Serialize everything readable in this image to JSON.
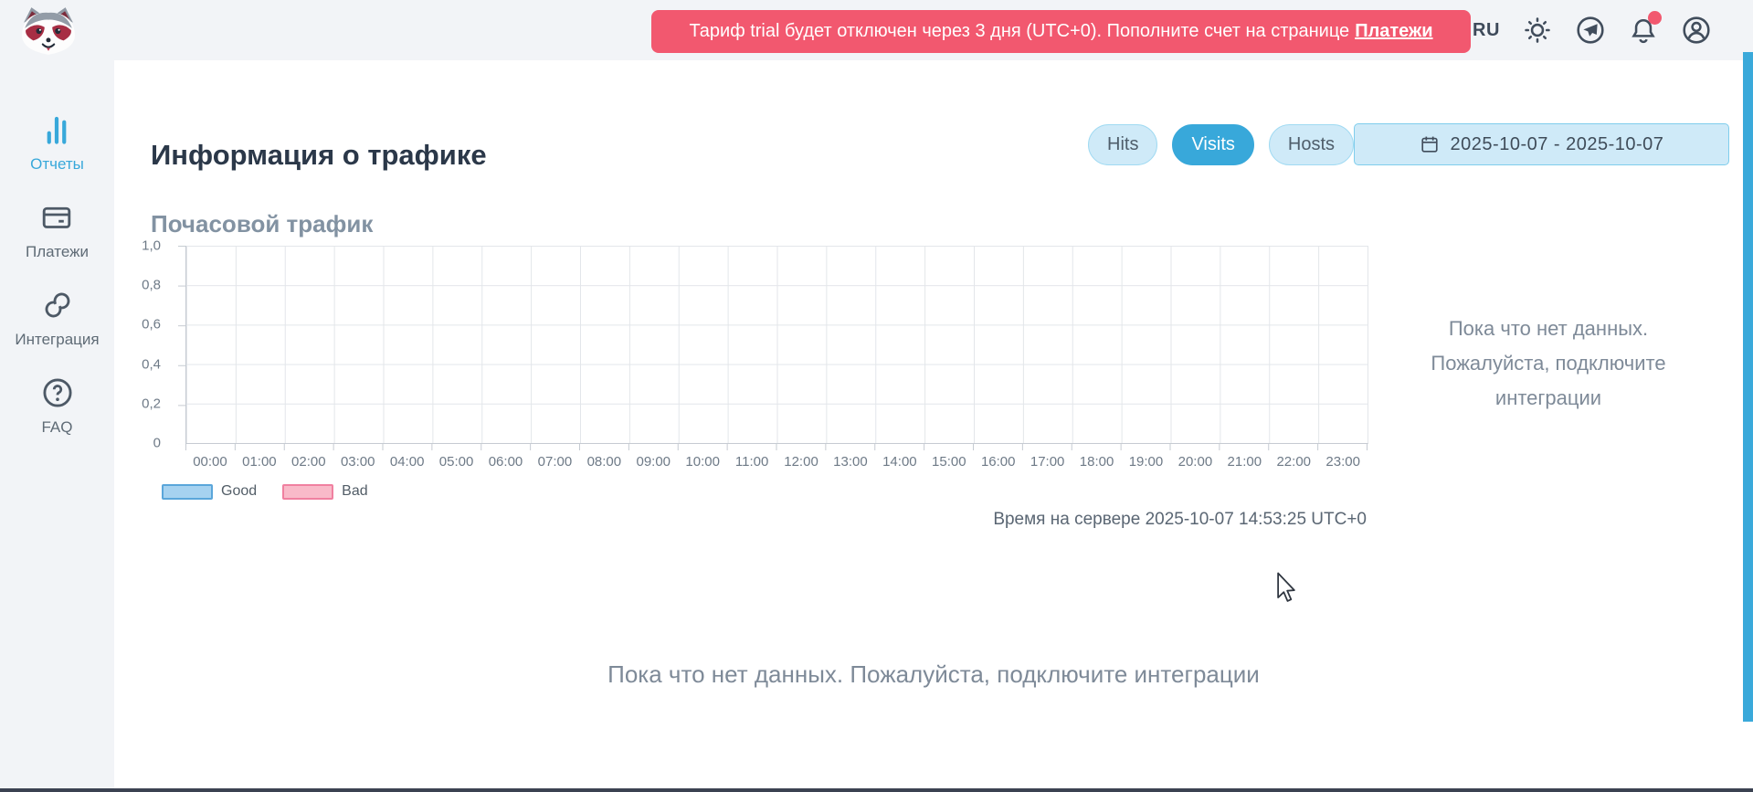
{
  "header": {
    "language": "RU",
    "banner": {
      "text": "Тариф trial будет отключен через 3 дня (UTC+0). Пополните счет на странице",
      "link_label": "Платежи"
    },
    "icons": [
      "theme-sun-icon",
      "telegram-icon",
      "notifications-bell-icon",
      "profile-icon"
    ],
    "notification_dot_color": "#f2586f"
  },
  "sidebar": {
    "items": [
      {
        "label": "Отчеты",
        "icon": "bar-chart-icon",
        "active": true
      },
      {
        "label": "Платежи",
        "icon": "credit-card-icon",
        "active": false
      },
      {
        "label": "Интеграция",
        "icon": "link-icon",
        "active": false
      },
      {
        "label": "FAQ",
        "icon": "question-icon",
        "active": false
      }
    ]
  },
  "main": {
    "title": "Информация о трафике",
    "view_buttons": [
      {
        "label": "Hits",
        "active": false
      },
      {
        "label": "Visits",
        "active": true
      },
      {
        "label": "Hosts",
        "active": false
      }
    ],
    "date_range": "2025-10-07 - 2025-10-07",
    "section_title": "Почасовой трафик",
    "server_time": "Время на сервере 2025-10-07 14:53:25 UTC+0",
    "no_data_panel": {
      "line1": "Пока что нет данных.",
      "line2": "Пожалуйста, подключите",
      "line3": "интеграции"
    },
    "no_data_footer": "Пока что нет данных. Пожалуйста, подключите интеграции"
  },
  "chart_data": {
    "type": "bar",
    "title": "Почасовой трафик",
    "empty": true,
    "categories": [
      "00:00",
      "01:00",
      "02:00",
      "03:00",
      "04:00",
      "05:00",
      "06:00",
      "07:00",
      "08:00",
      "09:00",
      "10:00",
      "11:00",
      "12:00",
      "13:00",
      "14:00",
      "15:00",
      "16:00",
      "17:00",
      "18:00",
      "19:00",
      "20:00",
      "21:00",
      "22:00",
      "23:00"
    ],
    "series": [
      {
        "name": "Good",
        "color": "#a6d2f0",
        "border_color": "#5aa6da",
        "values": [
          0,
          0,
          0,
          0,
          0,
          0,
          0,
          0,
          0,
          0,
          0,
          0,
          0,
          0,
          0,
          0,
          0,
          0,
          0,
          0,
          0,
          0,
          0,
          0
        ]
      },
      {
        "name": "Bad",
        "color": "#f9bac9",
        "border_color": "#f080a0",
        "values": [
          0,
          0,
          0,
          0,
          0,
          0,
          0,
          0,
          0,
          0,
          0,
          0,
          0,
          0,
          0,
          0,
          0,
          0,
          0,
          0,
          0,
          0,
          0,
          0
        ]
      }
    ],
    "xlabel": "",
    "ylabel": "",
    "ylim": [
      0,
      1
    ],
    "yticks": [
      "1,0",
      "0,8",
      "0,6",
      "0,4",
      "0,2",
      "0"
    ],
    "grid": true,
    "legend_position": "bottom-left"
  },
  "colors": {
    "accent_blue": "#38a8da",
    "banner_pink": "#f2586f",
    "scrollbar_blue": "#3aa9da"
  }
}
